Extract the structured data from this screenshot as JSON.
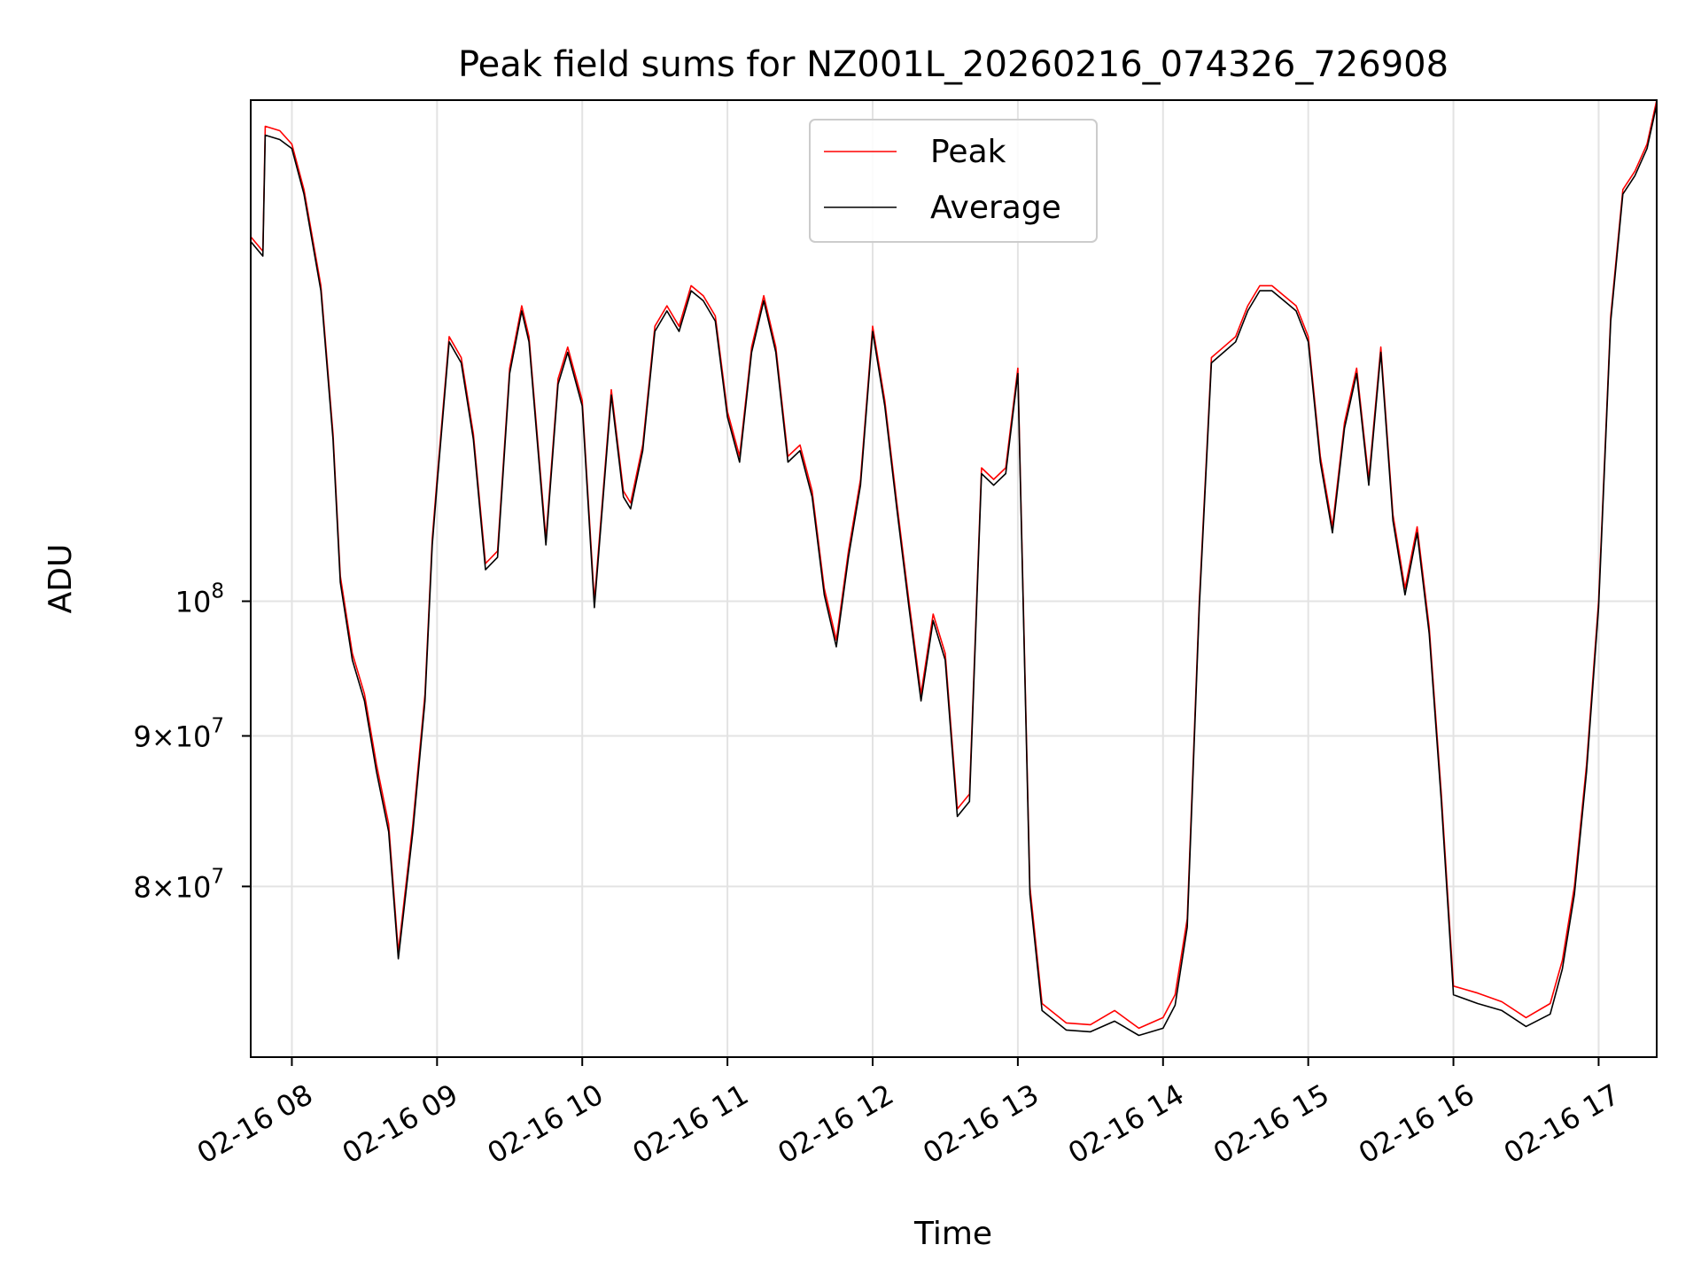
{
  "chart_data": {
    "type": "line",
    "title": "Peak field sums for NZ001L_20260216_074326_726908",
    "xlabel": "Time",
    "ylabel": "ADU",
    "y_scale": "log",
    "grid": true,
    "legend_position": "top-center",
    "xlim": [
      "2026-02-16 07:43",
      "2026-02-16 17:24"
    ],
    "ylim": [
      70000000,
      148000000
    ],
    "x_ticks": [
      {
        "value": "2026-02-16 08:00",
        "label": "02-16 08"
      },
      {
        "value": "2026-02-16 09:00",
        "label": "02-16 09"
      },
      {
        "value": "2026-02-16 10:00",
        "label": "02-16 10"
      },
      {
        "value": "2026-02-16 11:00",
        "label": "02-16 11"
      },
      {
        "value": "2026-02-16 12:00",
        "label": "02-16 12"
      },
      {
        "value": "2026-02-16 13:00",
        "label": "02-16 13"
      },
      {
        "value": "2026-02-16 14:00",
        "label": "02-16 14"
      },
      {
        "value": "2026-02-16 15:00",
        "label": "02-16 15"
      },
      {
        "value": "2026-02-16 16:00",
        "label": "02-16 16"
      },
      {
        "value": "2026-02-16 17:00",
        "label": "02-16 17"
      }
    ],
    "y_ticks": [
      {
        "value": 80000000,
        "mantissa": "8×10",
        "exponent": "7"
      },
      {
        "value": 90000000,
        "mantissa": "9×10",
        "exponent": "7"
      },
      {
        "value": 100000000,
        "mantissa": "10",
        "exponent": "8"
      }
    ],
    "x": [
      "2026-02-16 07:43",
      "2026-02-16 07:48",
      "2026-02-16 07:49",
      "2026-02-16 07:55",
      "2026-02-16 08:00",
      "2026-02-16 08:05",
      "2026-02-16 08:12",
      "2026-02-16 08:17",
      "2026-02-16 08:20",
      "2026-02-16 08:25",
      "2026-02-16 08:30",
      "2026-02-16 08:35",
      "2026-02-16 08:40",
      "2026-02-16 08:44",
      "2026-02-16 08:50",
      "2026-02-16 08:55",
      "2026-02-16 08:58",
      "2026-02-16 09:00",
      "2026-02-16 09:05",
      "2026-02-16 09:10",
      "2026-02-16 09:15",
      "2026-02-16 09:20",
      "2026-02-16 09:25",
      "2026-02-16 09:30",
      "2026-02-16 09:35",
      "2026-02-16 09:38",
      "2026-02-16 09:45",
      "2026-02-16 09:50",
      "2026-02-16 09:54",
      "2026-02-16 10:00",
      "2026-02-16 10:05",
      "2026-02-16 10:12",
      "2026-02-16 10:17",
      "2026-02-16 10:20",
      "2026-02-16 10:25",
      "2026-02-16 10:30",
      "2026-02-16 10:35",
      "2026-02-16 10:40",
      "2026-02-16 10:45",
      "2026-02-16 10:50",
      "2026-02-16 10:55",
      "2026-02-16 11:00",
      "2026-02-16 11:05",
      "2026-02-16 11:10",
      "2026-02-16 11:15",
      "2026-02-16 11:20",
      "2026-02-16 11:25",
      "2026-02-16 11:30",
      "2026-02-16 11:35",
      "2026-02-16 11:40",
      "2026-02-16 11:45",
      "2026-02-16 11:50",
      "2026-02-16 11:55",
      "2026-02-16 12:00",
      "2026-02-16 12:05",
      "2026-02-16 12:10",
      "2026-02-16 12:15",
      "2026-02-16 12:20",
      "2026-02-16 12:25",
      "2026-02-16 12:30",
      "2026-02-16 12:35",
      "2026-02-16 12:40",
      "2026-02-16 12:45",
      "2026-02-16 12:50",
      "2026-02-16 12:55",
      "2026-02-16 13:00",
      "2026-02-16 13:05",
      "2026-02-16 13:10",
      "2026-02-16 13:20",
      "2026-02-16 13:30",
      "2026-02-16 13:40",
      "2026-02-16 13:50",
      "2026-02-16 14:00",
      "2026-02-16 14:05",
      "2026-02-16 14:10",
      "2026-02-16 14:15",
      "2026-02-16 14:20",
      "2026-02-16 14:25",
      "2026-02-16 14:30",
      "2026-02-16 14:35",
      "2026-02-16 14:40",
      "2026-02-16 14:45",
      "2026-02-16 14:50",
      "2026-02-16 14:55",
      "2026-02-16 15:00",
      "2026-02-16 15:05",
      "2026-02-16 15:10",
      "2026-02-16 15:15",
      "2026-02-16 15:20",
      "2026-02-16 15:25",
      "2026-02-16 15:30",
      "2026-02-16 15:35",
      "2026-02-16 15:40",
      "2026-02-16 15:45",
      "2026-02-16 15:50",
      "2026-02-16 15:55",
      "2026-02-16 16:00",
      "2026-02-16 16:10",
      "2026-02-16 16:20",
      "2026-02-16 16:30",
      "2026-02-16 16:40",
      "2026-02-16 16:45",
      "2026-02-16 16:50",
      "2026-02-16 16:55",
      "2026-02-16 17:00",
      "2026-02-16 17:05",
      "2026-02-16 17:10",
      "2026-02-16 17:15",
      "2026-02-16 17:20",
      "2026-02-16 17:24"
    ],
    "series": [
      {
        "name": "Peak",
        "color": "#ff0000",
        "values": [
          133000000,
          131500000,
          145000000,
          144500000,
          143000000,
          138000000,
          128000000,
          114000000,
          102000000,
          96000000,
          93000000,
          88000000,
          84000000,
          76000000,
          84000000,
          93000000,
          105000000,
          110000000,
          123000000,
          121000000,
          114000000,
          103000000,
          104000000,
          120000000,
          126000000,
          123000000,
          105000000,
          119000000,
          122000000,
          117000000,
          100000000,
          118000000,
          109000000,
          108000000,
          113000000,
          124000000,
          126000000,
          124000000,
          128000000,
          127000000,
          125000000,
          116000000,
          112000000,
          122000000,
          127000000,
          122000000,
          112000000,
          113000000,
          109000000,
          101000000,
          97000000,
          104000000,
          110000000,
          124000000,
          117000000,
          108000000,
          100000000,
          93000000,
          99000000,
          96000000,
          85000000,
          86000000,
          111000000,
          110000000,
          111000000,
          120000000,
          80000000,
          73000000,
          71900000,
          71800000,
          72600000,
          71600000,
          72200000,
          73500000,
          78000000,
          100000000,
          121000000,
          122000000,
          123000000,
          126000000,
          128000000,
          128000000,
          127000000,
          126000000,
          123000000,
          112000000,
          106000000,
          115000000,
          120000000,
          110000000,
          122000000,
          107000000,
          101000000,
          106000000,
          98000000,
          86000000,
          74000000,
          73600000,
          73100000,
          72200000,
          73000000,
          75500000,
          80000000,
          88000000,
          100000000,
          125000000,
          138000000,
          140000000,
          143000000,
          148000000
        ]
      },
      {
        "name": "Average",
        "color": "#000000",
        "values": [
          132500000,
          131000000,
          144000000,
          143500000,
          142500000,
          137500000,
          127500000,
          113500000,
          101500000,
          95500000,
          92500000,
          87500000,
          83500000,
          75600000,
          83500000,
          92500000,
          104500000,
          109500000,
          122500000,
          120500000,
          113500000,
          102500000,
          103500000,
          119500000,
          125500000,
          122500000,
          104500000,
          118500000,
          121500000,
          116500000,
          99500000,
          117500000,
          108500000,
          107500000,
          112500000,
          123500000,
          125500000,
          123500000,
          127500000,
          126500000,
          124500000,
          115500000,
          111500000,
          121500000,
          126500000,
          121500000,
          111500000,
          112500000,
          108500000,
          100500000,
          96500000,
          103500000,
          109500000,
          123500000,
          116500000,
          107500000,
          99500000,
          92500000,
          98500000,
          95500000,
          84500000,
          85500000,
          110500000,
          109500000,
          110500000,
          119500000,
          79500000,
          72600000,
          71500000,
          71400000,
          72000000,
          71200000,
          71600000,
          72900000,
          77500000,
          99500000,
          120500000,
          121500000,
          122500000,
          125500000,
          127500000,
          127500000,
          126500000,
          125500000,
          122500000,
          111500000,
          105500000,
          114500000,
          119500000,
          109500000,
          121500000,
          106500000,
          100500000,
          105500000,
          97500000,
          85500000,
          73500000,
          73000000,
          72600000,
          71700000,
          72400000,
          75000000,
          79500000,
          87500000,
          99500000,
          124500000,
          137500000,
          139500000,
          142500000,
          147500000
        ]
      }
    ]
  }
}
